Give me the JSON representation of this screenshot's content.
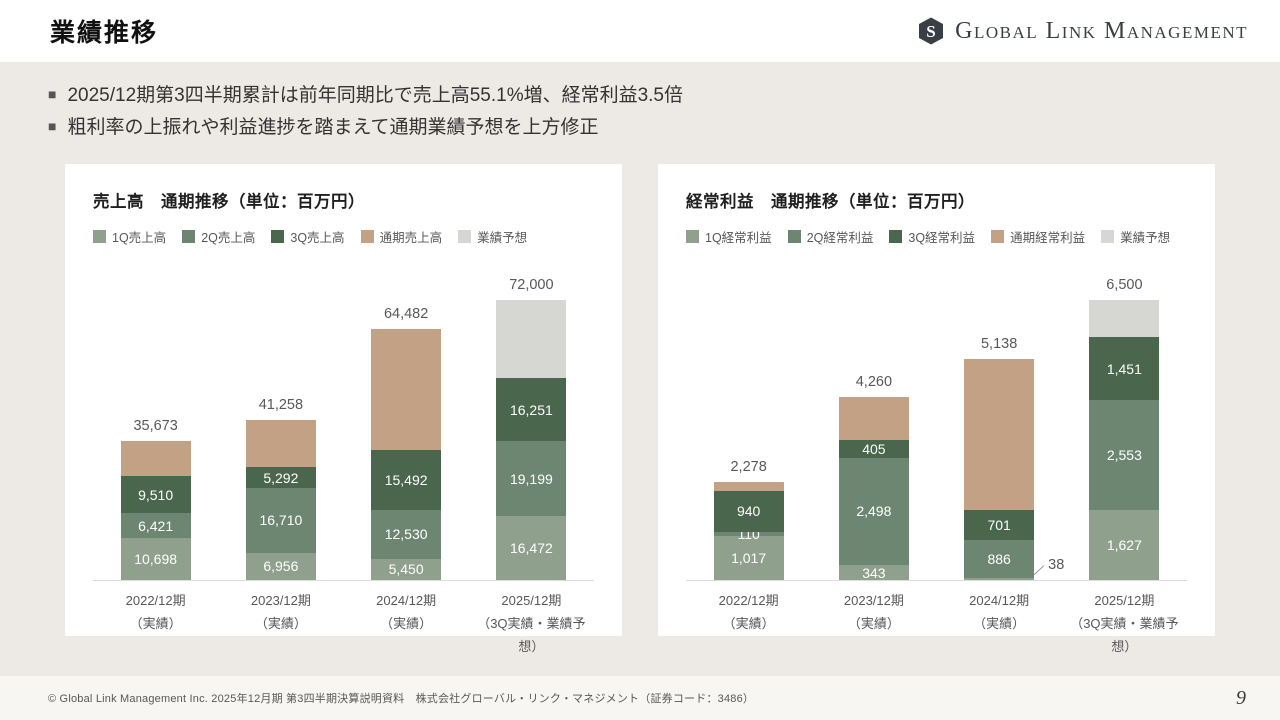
{
  "page": {
    "title": "業績推移",
    "logo_text": "Global Link Management",
    "bullet_marker": "■",
    "bullets": [
      "2025/12期第3四半期累計は前年同期比で売上高55.1%増、経常利益3.5倍",
      "粗利率の上振れや利益進捗を踏まえて通期業績予想を上方修正"
    ],
    "footer": "© Global Link Management Inc. 2025年12月期 第3四半期決算説明資料　株式会社グローバル・リンク・マネジメント（証券コード：3486）",
    "page_number": "9"
  },
  "colors": {
    "q1": "#8fa08d",
    "q2": "#6d8671",
    "q3": "#4a674e",
    "annual": "#c2a184",
    "forecast": "#d6d6d2",
    "background": "#edeae5",
    "panel": "#ffffff",
    "text_gray": "#595757",
    "axis_line": "#dcdcda",
    "logo_dark": "#3a3f45"
  },
  "chart_data": [
    {
      "type": "bar",
      "stacked": true,
      "title": "売上高　通期推移（単位：百万円）",
      "unit": "百万円",
      "ylim": [
        0,
        72000
      ],
      "legend_position": "top",
      "grid": false,
      "legend": [
        {
          "label": "1Q売上高",
          "color_key": "q1"
        },
        {
          "label": "2Q売上高",
          "color_key": "q2"
        },
        {
          "label": "3Q売上高",
          "color_key": "q3"
        },
        {
          "label": "通期売上高",
          "color_key": "annual"
        },
        {
          "label": "業績予想",
          "color_key": "forecast"
        }
      ],
      "bars": [
        {
          "category": "2022/12期",
          "category_note": "（実績）",
          "total": 35673,
          "total_label": "35,673",
          "segments": [
            {
              "name": "1Q売上高",
              "value": 10698,
              "label": "10,698",
              "color_key": "q1"
            },
            {
              "name": "2Q売上高",
              "value": 6421,
              "label": "6,421",
              "color_key": "q2"
            },
            {
              "name": "3Q売上高",
              "value": 9510,
              "label": "9,510",
              "color_key": "q3"
            },
            {
              "name": "通期売上高残",
              "value": 9044,
              "label": "",
              "color_key": "annual"
            }
          ]
        },
        {
          "category": "2023/12期",
          "category_note": "（実績）",
          "total": 41258,
          "total_label": "41,258",
          "segments": [
            {
              "name": "1Q売上高",
              "value": 6956,
              "label": "6,956",
              "color_key": "q1"
            },
            {
              "name": "2Q売上高",
              "value": 16710,
              "label": "16,710",
              "color_key": "q2"
            },
            {
              "name": "3Q売上高",
              "value": 5292,
              "label": "5,292",
              "color_key": "q3"
            },
            {
              "name": "通期売上高残",
              "value": 12300,
              "label": "",
              "color_key": "annual"
            }
          ]
        },
        {
          "category": "2024/12期",
          "category_note": "（実績）",
          "total": 64482,
          "total_label": "64,482",
          "segments": [
            {
              "name": "1Q売上高",
              "value": 5450,
              "label": "5,450",
              "color_key": "q1"
            },
            {
              "name": "2Q売上高",
              "value": 12530,
              "label": "12,530",
              "color_key": "q2"
            },
            {
              "name": "3Q売上高",
              "value": 15492,
              "label": "15,492",
              "color_key": "q3"
            },
            {
              "name": "通期売上高残",
              "value": 31010,
              "label": "",
              "color_key": "annual"
            }
          ]
        },
        {
          "category": "2025/12期",
          "category_note": "（3Q実績・業績予想）",
          "total": 72000,
          "total_label": "72,000",
          "segments": [
            {
              "name": "1Q売上高",
              "value": 16472,
              "label": "16,472",
              "color_key": "q1"
            },
            {
              "name": "2Q売上高",
              "value": 19199,
              "label": "19,199",
              "color_key": "q2"
            },
            {
              "name": "3Q売上高",
              "value": 16251,
              "label": "16,251",
              "color_key": "q3"
            },
            {
              "name": "業績予想残",
              "value": 20078,
              "label": "",
              "color_key": "forecast"
            }
          ]
        }
      ]
    },
    {
      "type": "bar",
      "stacked": true,
      "title": "経常利益　通期推移（単位：百万円）",
      "unit": "百万円",
      "ylim": [
        0,
        6500
      ],
      "legend_position": "top",
      "grid": false,
      "legend": [
        {
          "label": "1Q経常利益",
          "color_key": "q1"
        },
        {
          "label": "2Q経常利益",
          "color_key": "q2"
        },
        {
          "label": "3Q経常利益",
          "color_key": "q3"
        },
        {
          "label": "通期経常利益",
          "color_key": "annual"
        },
        {
          "label": "業績予想",
          "color_key": "forecast"
        }
      ],
      "bars": [
        {
          "category": "2022/12期",
          "category_note": "（実績）",
          "total": 2278,
          "total_label": "2,278",
          "segments": [
            {
              "name": "1Q経常利益",
              "value": 1017,
              "label": "1,017",
              "color_key": "q1"
            },
            {
              "name": "2Q経常利益",
              "value": 110,
              "label": "110",
              "color_key": "q2"
            },
            {
              "name": "3Q経常利益",
              "value": 940,
              "label": "940",
              "color_key": "q3"
            },
            {
              "name": "通期経常利益残",
              "value": 211,
              "label": "",
              "color_key": "annual"
            }
          ]
        },
        {
          "category": "2023/12期",
          "category_note": "（実績）",
          "total": 4260,
          "total_label": "4,260",
          "segments": [
            {
              "name": "1Q経常利益",
              "value": 343,
              "label": "343",
              "color_key": "q1"
            },
            {
              "name": "2Q経常利益",
              "value": 2498,
              "label": "2,498",
              "color_key": "q2"
            },
            {
              "name": "3Q経常利益",
              "value": 405,
              "label": "405",
              "color_key": "q3"
            },
            {
              "name": "通期経常利益残",
              "value": 1014,
              "label": "",
              "color_key": "annual"
            }
          ]
        },
        {
          "category": "2024/12期",
          "category_note": "（実績）",
          "total": 5138,
          "total_label": "5,138",
          "segments": [
            {
              "name": "1Q経常利益",
              "value": 38,
              "label": "38",
              "color_key": "q1",
              "callout": true
            },
            {
              "name": "2Q経常利益",
              "value": 886,
              "label": "886",
              "color_key": "q2"
            },
            {
              "name": "3Q経常利益",
              "value": 701,
              "label": "701",
              "color_key": "q3"
            },
            {
              "name": "通期経常利益残",
              "value": 3513,
              "label": "",
              "color_key": "annual"
            }
          ]
        },
        {
          "category": "2025/12期",
          "category_note": "（3Q実績・業績予想）",
          "total": 6500,
          "total_label": "6,500",
          "segments": [
            {
              "name": "1Q経常利益",
              "value": 1627,
              "label": "1,627",
              "color_key": "q1"
            },
            {
              "name": "2Q経常利益",
              "value": 2553,
              "label": "2,553",
              "color_key": "q2"
            },
            {
              "name": "3Q経常利益",
              "value": 1451,
              "label": "1,451",
              "color_key": "q3"
            },
            {
              "name": "業績予想残",
              "value": 869,
              "label": "",
              "color_key": "forecast"
            }
          ]
        }
      ]
    }
  ]
}
